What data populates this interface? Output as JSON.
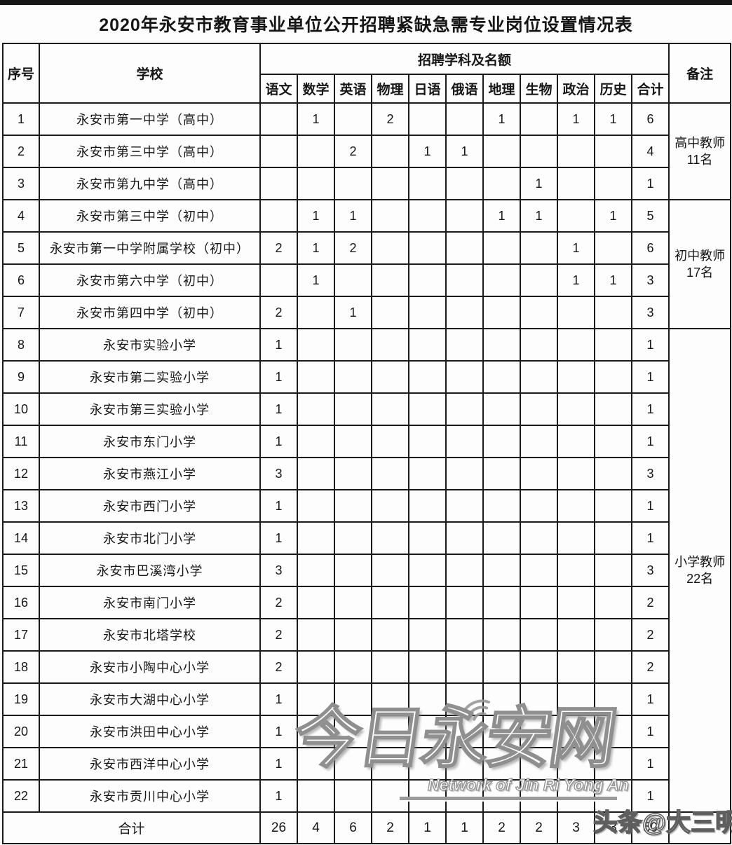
{
  "title": "2020年永安市教育事业单位公开招聘紧缺急需专业岗位设置情况表",
  "colors": {
    "background": "#ffffff",
    "text": "#161616",
    "grid_border": "#1a1a1a",
    "top_bar": "#161616",
    "watermark_stroke": "#8f8f8f",
    "byline_stroke": "#5e5e5e"
  },
  "table": {
    "header": {
      "index_label": "序号",
      "school_label": "学校",
      "subjects_group_label": "招聘学科及名额",
      "remark_label": "备注",
      "subjects": [
        "语文",
        "数学",
        "英语",
        "物理",
        "日语",
        "俄语",
        "地理",
        "生物",
        "政治",
        "历史",
        "合计"
      ]
    },
    "rows": [
      {
        "no": "1",
        "school": "永安市第一中学（高中）",
        "values": [
          "",
          "1",
          "",
          "2",
          "",
          "",
          "1",
          "",
          "1",
          "1",
          "6"
        ],
        "remark": {
          "lines": [
            "高中教师",
            "11名"
          ],
          "rowspan": 3
        }
      },
      {
        "no": "2",
        "school": "永安市第三中学（高中）",
        "values": [
          "",
          "",
          "2",
          "",
          "1",
          "1",
          "",
          "",
          "",
          "",
          "4"
        ],
        "remark": null
      },
      {
        "no": "3",
        "school": "永安市第九中学（高中）",
        "values": [
          "",
          "",
          "",
          "",
          "",
          "",
          "",
          "1",
          "",
          "",
          "1"
        ],
        "remark": null
      },
      {
        "no": "4",
        "school": "永安市第三中学（初中）",
        "values": [
          "",
          "1",
          "1",
          "",
          "",
          "",
          "1",
          "1",
          "",
          "1",
          "5"
        ],
        "remark": {
          "lines": [
            "初中教师",
            "17名"
          ],
          "rowspan": 4
        }
      },
      {
        "no": "5",
        "school": "永安市第一中学附属学校（初中）",
        "values": [
          "2",
          "1",
          "2",
          "",
          "",
          "",
          "",
          "",
          "1",
          "",
          "6"
        ],
        "remark": null
      },
      {
        "no": "6",
        "school": "永安市第六中学（初中）",
        "values": [
          "",
          "1",
          "",
          "",
          "",
          "",
          "",
          "",
          "1",
          "1",
          "3"
        ],
        "remark": null
      },
      {
        "no": "7",
        "school": "永安市第四中学（初中）",
        "values": [
          "2",
          "",
          "1",
          "",
          "",
          "",
          "",
          "",
          "",
          "",
          "3"
        ],
        "remark": null
      },
      {
        "no": "8",
        "school": "永安市实验小学",
        "values": [
          "1",
          "",
          "",
          "",
          "",
          "",
          "",
          "",
          "",
          "",
          "1"
        ],
        "remark": {
          "lines": [
            "小学教师",
            "22名"
          ],
          "rowspan": 15
        }
      },
      {
        "no": "9",
        "school": "永安市第二实验小学",
        "values": [
          "1",
          "",
          "",
          "",
          "",
          "",
          "",
          "",
          "",
          "",
          "1"
        ],
        "remark": null
      },
      {
        "no": "10",
        "school": "永安市第三实验小学",
        "values": [
          "1",
          "",
          "",
          "",
          "",
          "",
          "",
          "",
          "",
          "",
          "1"
        ],
        "remark": null
      },
      {
        "no": "11",
        "school": "永安市东门小学",
        "values": [
          "1",
          "",
          "",
          "",
          "",
          "",
          "",
          "",
          "",
          "",
          "1"
        ],
        "remark": null
      },
      {
        "no": "12",
        "school": "永安市燕江小学",
        "values": [
          "3",
          "",
          "",
          "",
          "",
          "",
          "",
          "",
          "",
          "",
          "3"
        ],
        "remark": null
      },
      {
        "no": "13",
        "school": "永安市西门小学",
        "values": [
          "1",
          "",
          "",
          "",
          "",
          "",
          "",
          "",
          "",
          "",
          "1"
        ],
        "remark": null
      },
      {
        "no": "14",
        "school": "永安市北门小学",
        "values": [
          "1",
          "",
          "",
          "",
          "",
          "",
          "",
          "",
          "",
          "",
          "1"
        ],
        "remark": null
      },
      {
        "no": "15",
        "school": "永安市巴溪湾小学",
        "values": [
          "3",
          "",
          "",
          "",
          "",
          "",
          "",
          "",
          "",
          "",
          "3"
        ],
        "remark": null
      },
      {
        "no": "16",
        "school": "永安市南门小学",
        "values": [
          "2",
          "",
          "",
          "",
          "",
          "",
          "",
          "",
          "",
          "",
          "2"
        ],
        "remark": null
      },
      {
        "no": "17",
        "school": "永安市北塔学校",
        "values": [
          "2",
          "",
          "",
          "",
          "",
          "",
          "",
          "",
          "",
          "",
          "2"
        ],
        "remark": null
      },
      {
        "no": "18",
        "school": "永安市小陶中心小学",
        "values": [
          "2",
          "",
          "",
          "",
          "",
          "",
          "",
          "",
          "",
          "",
          "2"
        ],
        "remark": null
      },
      {
        "no": "19",
        "school": "永安市大湖中心小学",
        "values": [
          "1",
          "",
          "",
          "",
          "",
          "",
          "",
          "",
          "",
          "",
          "1"
        ],
        "remark": null
      },
      {
        "no": "20",
        "school": "永安市洪田中心小学",
        "values": [
          "1",
          "",
          "",
          "",
          "",
          "",
          "",
          "",
          "",
          "",
          "1"
        ],
        "remark": null
      },
      {
        "no": "21",
        "school": "永安市西洋中心小学",
        "values": [
          "1",
          "",
          "",
          "",
          "",
          "",
          "",
          "",
          "",
          "",
          "1"
        ],
        "remark": null
      },
      {
        "no": "22",
        "school": "永安市贡川中心小学",
        "values": [
          "1",
          "",
          "",
          "",
          "",
          "",
          "",
          "",
          "",
          "",
          "1"
        ],
        "remark": null
      }
    ],
    "total": {
      "label": "合计",
      "values": [
        "26",
        "4",
        "6",
        "2",
        "1",
        "1",
        "2",
        "2",
        "3",
        "3",
        "50"
      ],
      "remark": ""
    }
  },
  "watermarks": {
    "logo_text": "今日永安网",
    "logo_subtext": "Network of Jin Ri Yong An",
    "byline": "头条@大三明"
  }
}
